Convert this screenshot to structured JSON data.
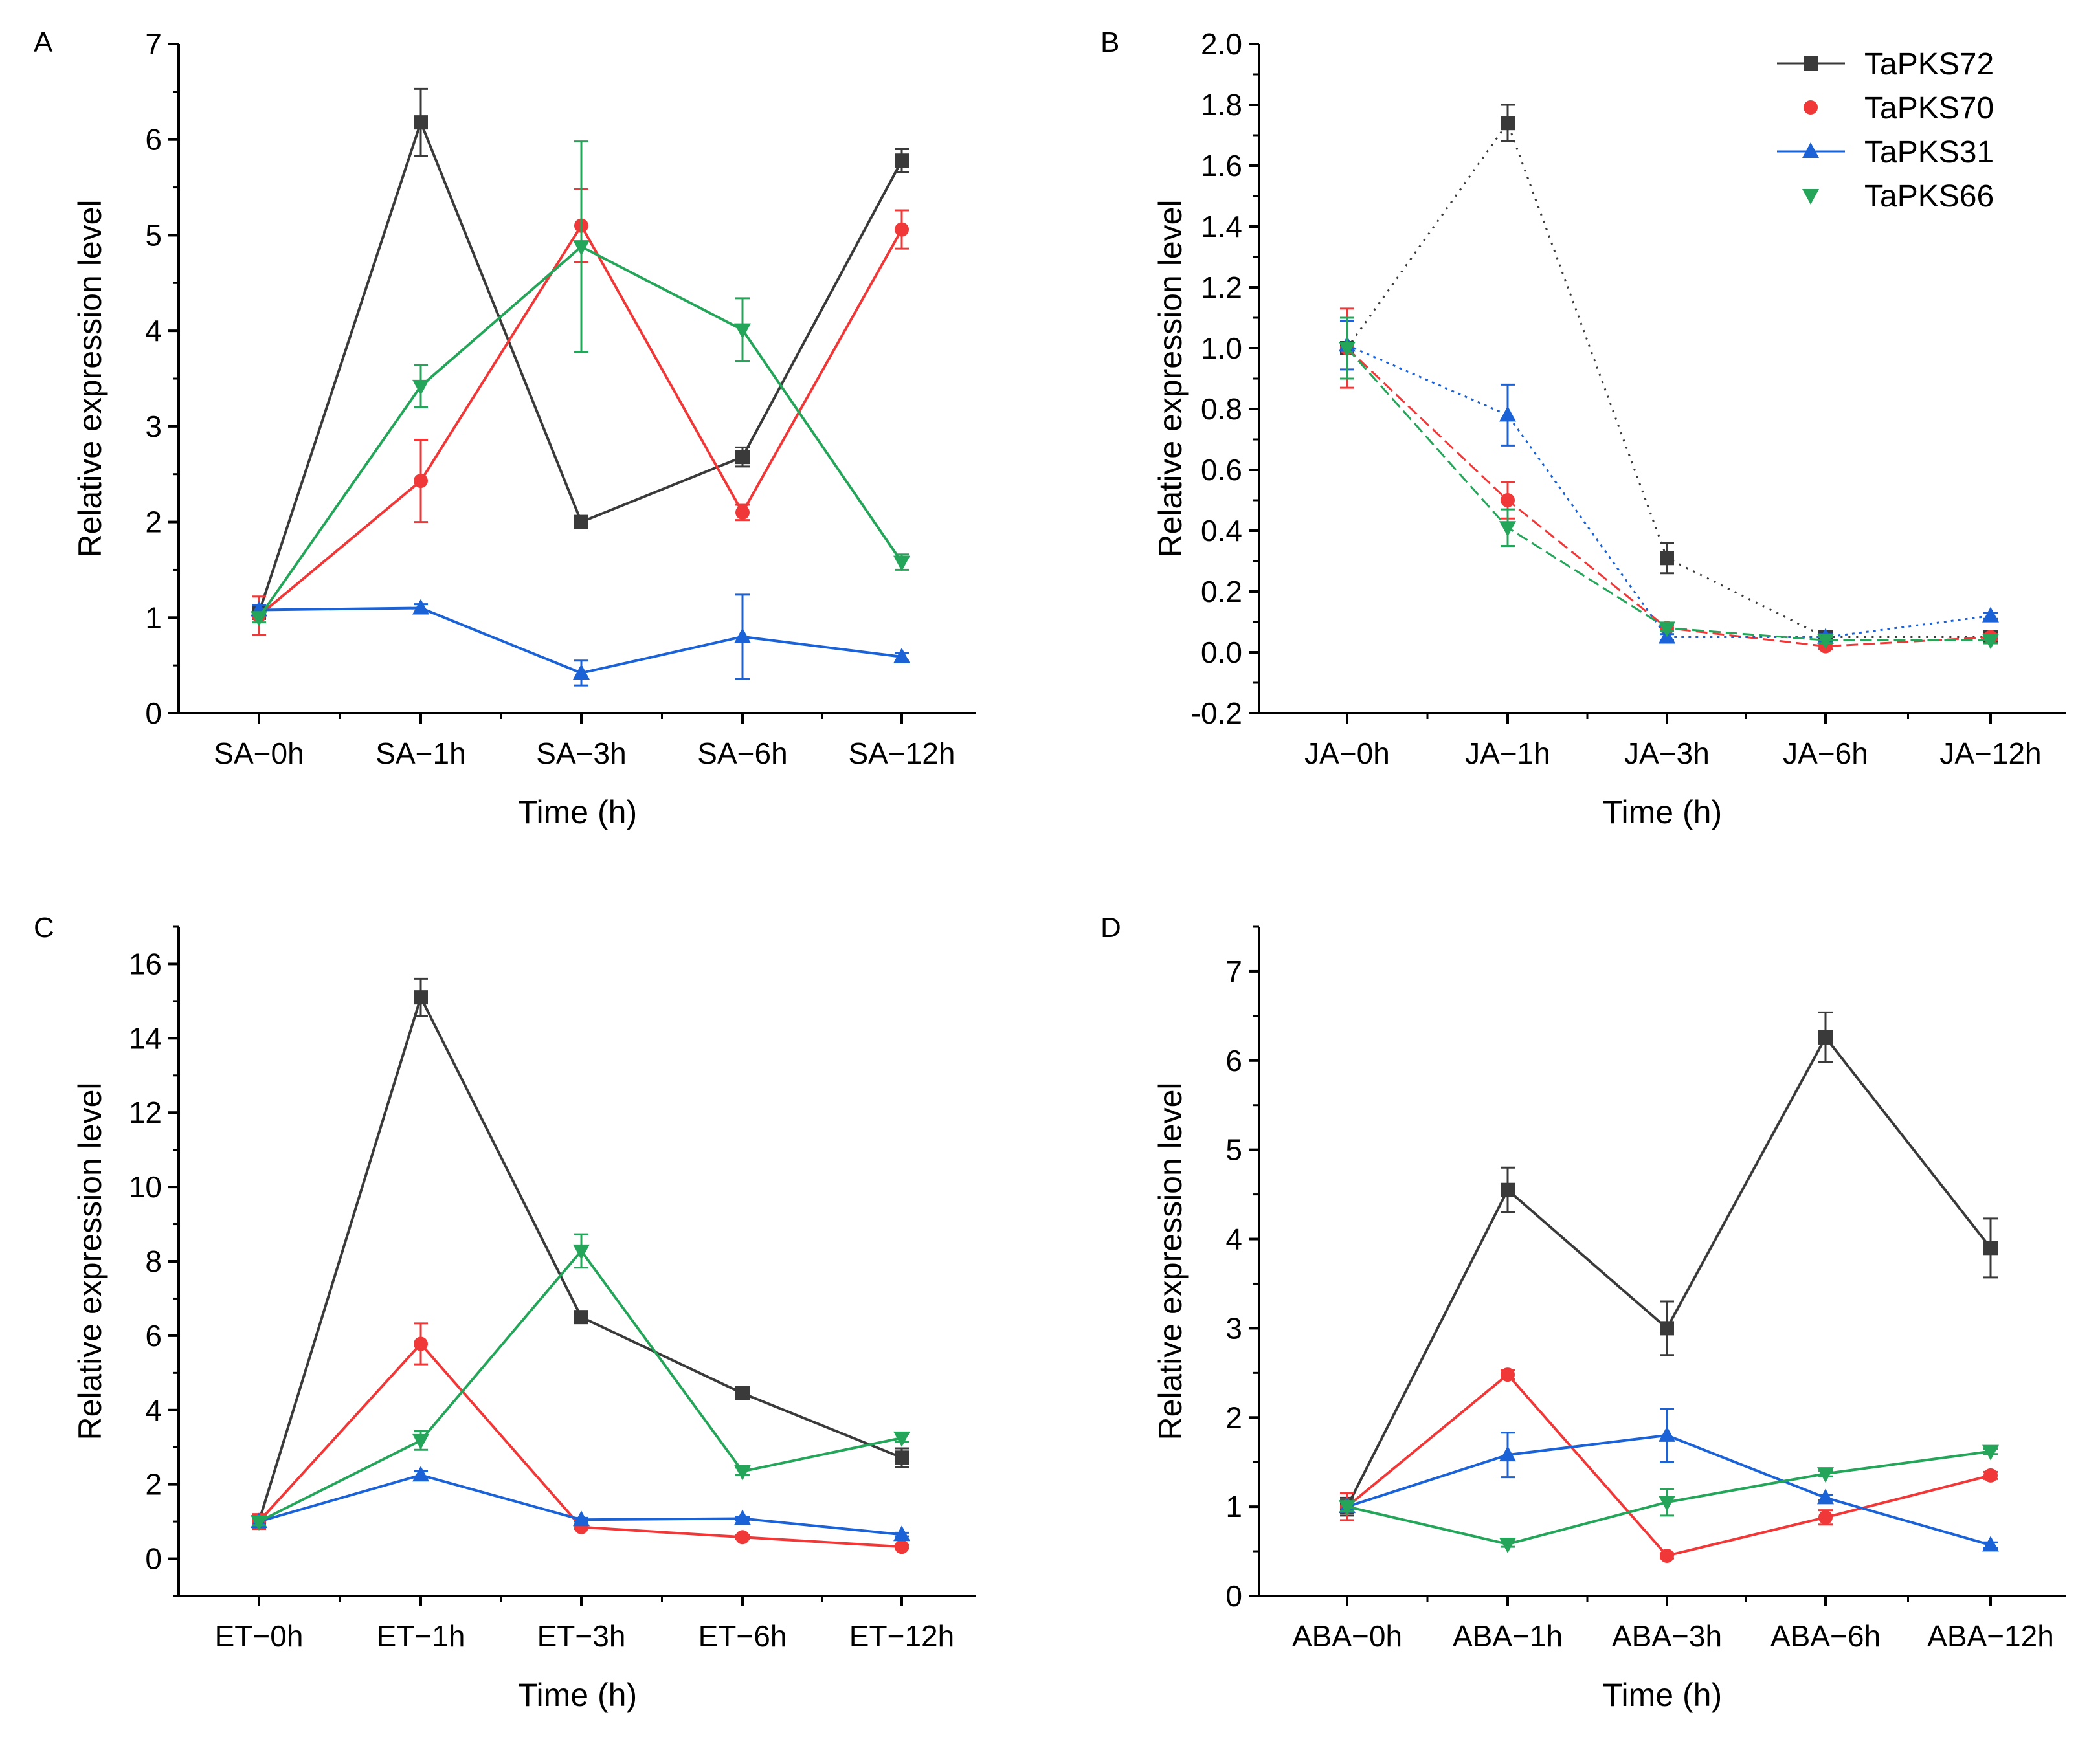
{
  "colors": {
    "TaPKS72": "#3a3a3a",
    "TaPKS70": "#f03838",
    "TaPKS31": "#1a62d6",
    "TaPKS66": "#25a55a"
  },
  "legend": [
    "TaPKS72",
    "TaPKS70",
    "TaPKS31",
    "TaPKS66"
  ],
  "chart_data": [
    {
      "panel": "A",
      "type": "line",
      "xlabel": "Time (h)",
      "ylabel": "Relative expression level",
      "categories": [
        "SA−0h",
        "SA−1h",
        "SA−3h",
        "SA−6h",
        "SA−12h"
      ],
      "ylim": [
        0,
        7
      ],
      "yticks": [
        0,
        1,
        2,
        3,
        4,
        5,
        6,
        7
      ],
      "ytick_labels": [
        "0",
        "1",
        "2",
        "3",
        "4",
        "5",
        "6",
        "7"
      ],
      "series": [
        {
          "name": "TaPKS72",
          "values": [
            1.05,
            6.18,
            2.0,
            2.68,
            5.78
          ],
          "errors": [
            0.05,
            0.35,
            0.03,
            0.1,
            0.12
          ]
        },
        {
          "name": "TaPKS70",
          "values": [
            1.02,
            2.43,
            5.1,
            2.1,
            5.06
          ],
          "errors": [
            0.2,
            0.43,
            0.38,
            0.08,
            0.2
          ]
        },
        {
          "name": "TaPKS31",
          "values": [
            1.08,
            1.1,
            0.42,
            0.8,
            0.59
          ],
          "errors": [
            0.05,
            0.04,
            0.13,
            0.44,
            0.04
          ]
        },
        {
          "name": "TaPKS66",
          "values": [
            1.0,
            3.42,
            4.88,
            4.01,
            1.58
          ],
          "errors": [
            0.05,
            0.22,
            1.1,
            0.33,
            0.08
          ]
        }
      ],
      "line_style": "solid"
    },
    {
      "panel": "B",
      "type": "line",
      "xlabel": "Time (h)",
      "ylabel": "Relative expression level",
      "categories": [
        "JA−0h",
        "JA−1h",
        "JA−3h",
        "JA−6h",
        "JA−12h"
      ],
      "ylim": [
        -0.2,
        2.0
      ],
      "yticks": [
        -0.2,
        0.0,
        0.2,
        0.4,
        0.6,
        0.8,
        1.0,
        1.2,
        1.4,
        1.6,
        1.8,
        2.0
      ],
      "ytick_labels": [
        "-0.2",
        "0.0",
        "0.2",
        "0.4",
        "0.6",
        "0.8",
        "1.0",
        "1.2",
        "1.4",
        "1.6",
        "1.8",
        "2.0"
      ],
      "series": [
        {
          "name": "TaPKS72",
          "values": [
            1.0,
            1.74,
            0.31,
            0.05,
            0.05
          ],
          "errors": [
            0.1,
            0.06,
            0.05,
            0.01,
            0.01
          ],
          "dash": "3 9"
        },
        {
          "name": "TaPKS70",
          "values": [
            1.0,
            0.5,
            0.08,
            0.02,
            0.05
          ],
          "errors": [
            0.13,
            0.06,
            0.01,
            0.01,
            0.01
          ],
          "dash": "18 8"
        },
        {
          "name": "TaPKS31",
          "values": [
            1.01,
            0.78,
            0.05,
            0.05,
            0.12
          ],
          "errors": [
            0.08,
            0.1,
            0.01,
            0.01,
            0.01
          ],
          "dash": "4 7"
        },
        {
          "name": "TaPKS66",
          "values": [
            1.0,
            0.41,
            0.08,
            0.04,
            0.04
          ],
          "errors": [
            0.1,
            0.06,
            0.01,
            0.01,
            0.01
          ],
          "dash": "18 8"
        }
      ],
      "legend_position": "top-right"
    },
    {
      "panel": "C",
      "type": "line",
      "xlabel": "Time (h)",
      "ylabel": "Relative expression level",
      "categories": [
        "ET−0h",
        "ET−1h",
        "ET−3h",
        "ET−6h",
        "ET−12h"
      ],
      "ylim": [
        -1,
        17
      ],
      "yticks": [
        0,
        2,
        4,
        6,
        8,
        10,
        12,
        14,
        16
      ],
      "ytick_labels": [
        "0",
        "2",
        "4",
        "6",
        "8",
        "10",
        "12",
        "14",
        "16"
      ],
      "series": [
        {
          "name": "TaPKS72",
          "values": [
            1.0,
            15.1,
            6.5,
            4.45,
            2.72
          ],
          "errors": [
            0.1,
            0.5,
            0.1,
            0.12,
            0.25
          ]
        },
        {
          "name": "TaPKS70",
          "values": [
            1.0,
            5.78,
            0.85,
            0.58,
            0.32
          ],
          "errors": [
            0.2,
            0.55,
            0.05,
            0.05,
            0.05
          ]
        },
        {
          "name": "TaPKS31",
          "values": [
            1.0,
            2.25,
            1.05,
            1.08,
            0.65
          ],
          "errors": [
            0.1,
            0.1,
            0.05,
            0.05,
            0.05
          ]
        },
        {
          "name": "TaPKS66",
          "values": [
            1.0,
            3.18,
            8.28,
            2.35,
            3.25
          ],
          "errors": [
            0.1,
            0.25,
            0.45,
            0.1,
            0.1
          ]
        }
      ],
      "line_style": "solid"
    },
    {
      "panel": "D",
      "type": "line",
      "xlabel": "Time (h)",
      "ylabel": "Relative expression level",
      "categories": [
        "ABA−0h",
        "ABA−1h",
        "ABA−3h",
        "ABA−6h",
        "ABA−12h"
      ],
      "ylim": [
        0,
        7.5
      ],
      "yticks": [
        0,
        1,
        2,
        3,
        4,
        5,
        6,
        7
      ],
      "ytick_labels": [
        "0",
        "1",
        "2",
        "3",
        "4",
        "5",
        "6",
        "7"
      ],
      "series": [
        {
          "name": "TaPKS72",
          "values": [
            1.0,
            4.55,
            3.0,
            6.26,
            3.9
          ],
          "errors": [
            0.1,
            0.25,
            0.3,
            0.28,
            0.33
          ]
        },
        {
          "name": "TaPKS70",
          "values": [
            1.0,
            2.48,
            0.45,
            0.88,
            1.35
          ],
          "errors": [
            0.15,
            0.05,
            0.03,
            0.08,
            0.04
          ]
        },
        {
          "name": "TaPKS31",
          "values": [
            1.0,
            1.58,
            1.8,
            1.1,
            0.57
          ],
          "errors": [
            0.05,
            0.25,
            0.3,
            0.03,
            0.03
          ]
        },
        {
          "name": "TaPKS66",
          "values": [
            1.0,
            0.58,
            1.05,
            1.37,
            1.62
          ],
          "errors": [
            0.05,
            0.03,
            0.15,
            0.03,
            0.03
          ]
        }
      ],
      "line_style": "solid"
    }
  ]
}
